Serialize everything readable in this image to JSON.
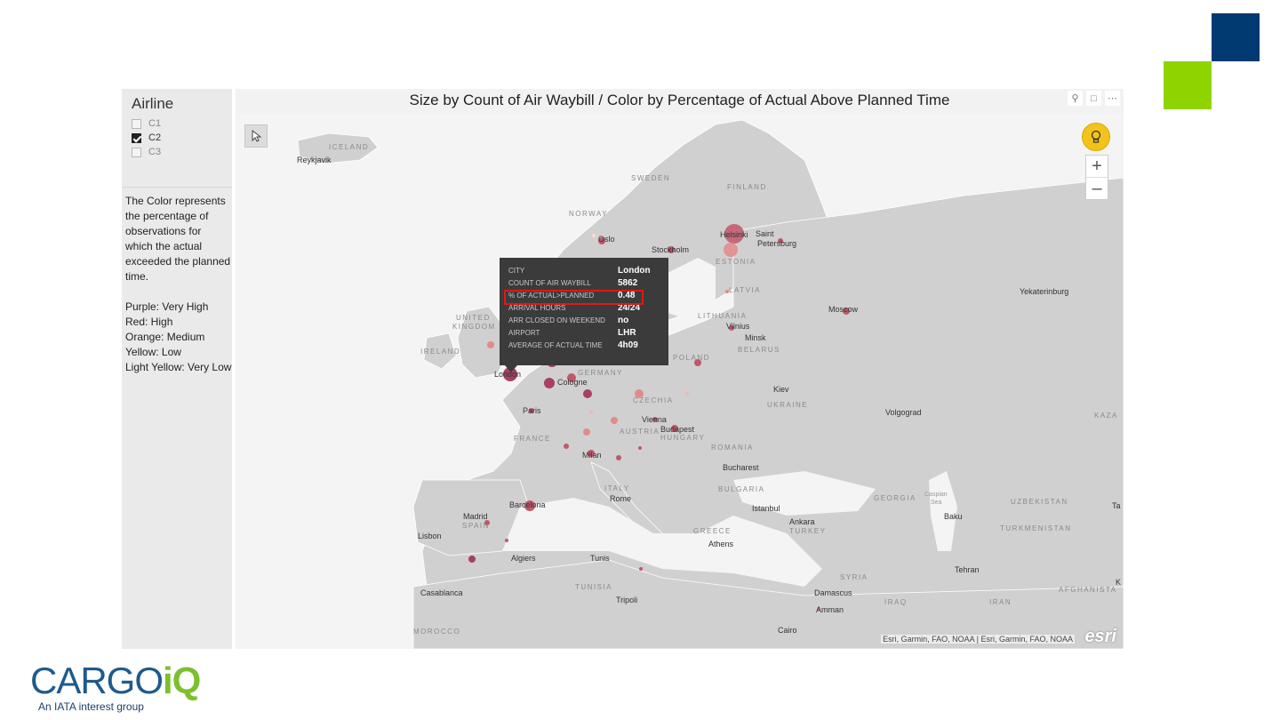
{
  "slicer": {
    "title": "Airline",
    "items": [
      {
        "label": "C1",
        "checked": false
      },
      {
        "label": "C2",
        "checked": true
      },
      {
        "label": "C3",
        "checked": false
      }
    ]
  },
  "legend": {
    "description_lines": [
      "The Color represents",
      "the percentage of",
      "observations for",
      "which the actual",
      "exceeded the planned",
      "time."
    ],
    "scale": [
      "Purple: Very High",
      "Red: High",
      "Orange: Medium",
      "Yellow: Low",
      "Light Yellow: Very Low"
    ]
  },
  "visual": {
    "title": "Size by Count of Air Waybill / Color by Percentage of Actual Above Planned Time",
    "header_icons": [
      "pin-icon",
      "focus-icon",
      "more-icon"
    ]
  },
  "map": {
    "cities": [
      "Reykjavik",
      "Oslo",
      "Stockholm",
      "Helsinki",
      "Saint",
      "Petersburg",
      "Yekaterinburg",
      "Moscow",
      "Vilnius",
      "Minsk",
      "London",
      "Cologne",
      "Paris",
      "Vienna",
      "Budapest",
      "Kiev",
      "Volgograd",
      "Milan",
      "Bucharest",
      "Rome",
      "Barcelona",
      "Madrid",
      "Lisbon",
      "Istanbul",
      "Ankara",
      "Baku",
      "Algiers",
      "Tunis",
      "Athens",
      "Tehran",
      "Casablanca",
      "Tripoli",
      "Damascus",
      "Amman",
      "Cairo"
    ],
    "countries": [
      "ICELAND",
      "SWEDEN",
      "FINLAND",
      "NORWAY",
      "ESTONIA",
      "LATVIA",
      "LITHUANIA",
      "BELARUS",
      "UNITED",
      "KINGDOM",
      "IRELAND",
      "GERMANY",
      "POLAND",
      "CZECHIA",
      "AUSTRIA",
      "HUNGARY",
      "UKRAINE",
      "FRANCE",
      "ROMANIA",
      "ITALY",
      "BULGARIA",
      "SPAIN",
      "GREECE",
      "TURKEY",
      "GEORGIA",
      "UZBEKISTAN",
      "TURKMENISTAN",
      "KAZA",
      "SYRIA",
      "IRAQ",
      "IRAN",
      "AFGHANISTA",
      "TUNISIA",
      "MOROCCO"
    ],
    "seas": [
      "Caspian",
      "Sea"
    ],
    "edge_labels": [
      "Ta",
      "K"
    ],
    "attribution": "Esri, Garmin, FAO, NOAA | Esri, Garmin, FAO, NOAA",
    "esri_logo": "esri"
  },
  "tooltip": {
    "rows": [
      {
        "key": "CITY",
        "value": "London"
      },
      {
        "key": "COUNT OF AIR WAYBILL",
        "value": "5862"
      },
      {
        "key": "% OF ACTUAL>PLANNED",
        "value": "0.48"
      },
      {
        "key": "ARRIVAL HOURS",
        "value": "24/24"
      },
      {
        "key": "ARR CLOSED ON WEEKEND",
        "value": "no"
      },
      {
        "key": "AIRPORT",
        "value": "LHR"
      },
      {
        "key": "AVERAGE OF ACTUAL TIME",
        "value": "4h09"
      }
    ]
  },
  "colors": {
    "very_high": "#a8405f",
    "high": "#c2566a",
    "medium": "#e48a88",
    "low": "#f0b8a8",
    "very_low": "#f7dcc8",
    "brand_blue": "#003a70",
    "brand_green": "#8fd400"
  },
  "logo": {
    "wordmark_main": "CARGO",
    "wordmark_iq": "iQ",
    "tagline": "An IATA interest group"
  }
}
